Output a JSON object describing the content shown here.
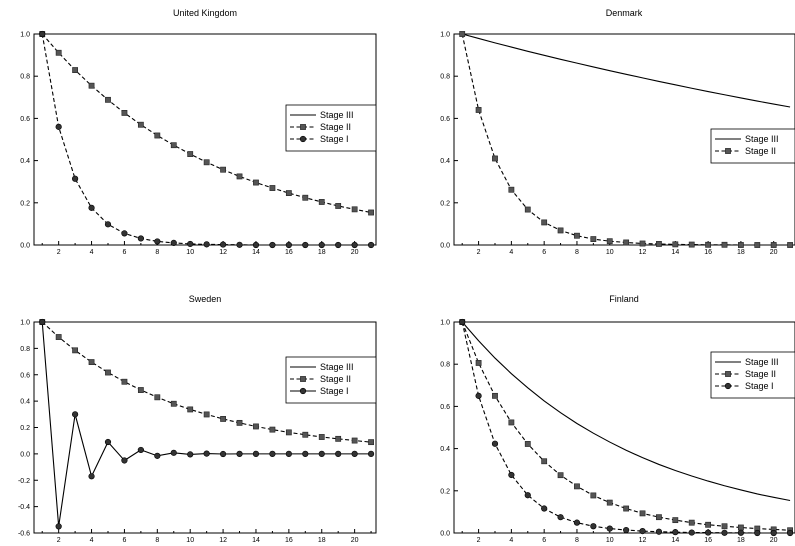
{
  "chart_data": [
    {
      "type": "line",
      "title": "United Kingdom",
      "x": [
        1,
        2,
        3,
        4,
        5,
        6,
        7,
        8,
        9,
        10,
        11,
        12,
        13,
        14,
        15,
        16,
        17,
        18,
        19,
        20,
        21
      ],
      "ylim": [
        0,
        1.0
      ],
      "yticks": [
        "0.0",
        "0.2",
        "0.4",
        "0.6",
        "0.8",
        "1.0"
      ],
      "xticks": [
        "2",
        "4",
        "6",
        "8",
        "10",
        "12",
        "14",
        "16",
        "18",
        "20"
      ],
      "legend_position": "right-middle",
      "series": [
        {
          "name": "Stage III",
          "style": "solid",
          "marker": "none",
          "values": [
            1,
            1,
            1,
            1,
            1,
            1,
            1,
            1,
            1,
            1,
            1,
            1,
            1,
            1,
            1,
            1,
            1,
            1,
            1,
            1,
            1
          ]
        },
        {
          "name": "Stage II",
          "style": "dashed",
          "marker": "square",
          "values": [
            1.0,
            0.911,
            0.829,
            0.755,
            0.688,
            0.626,
            0.57,
            0.519,
            0.473,
            0.431,
            0.392,
            0.357,
            0.325,
            0.296,
            0.27,
            0.246,
            0.224,
            0.204,
            0.185,
            0.169,
            0.154
          ]
        },
        {
          "name": "Stage I",
          "style": "dashed",
          "marker": "circle",
          "values": [
            1.0,
            0.56,
            0.314,
            0.176,
            0.098,
            0.055,
            0.031,
            0.017,
            0.01,
            0.005,
            0.003,
            0.002,
            0.001,
            0,
            0,
            0,
            0,
            0,
            0,
            0,
            0
          ]
        }
      ]
    },
    {
      "type": "line",
      "title": "Denmark",
      "x": [
        1,
        2,
        3,
        4,
        5,
        6,
        7,
        8,
        9,
        10,
        11,
        12,
        13,
        14,
        15,
        16,
        17,
        18,
        19,
        20,
        21
      ],
      "ylim": [
        0,
        1.0
      ],
      "yticks": [
        "0.0",
        "0.2",
        "0.4",
        "0.6",
        "0.8",
        "1.0"
      ],
      "xticks": [
        "2",
        "4",
        "6",
        "8",
        "10",
        "12",
        "14",
        "16",
        "18",
        "20"
      ],
      "legend_position": "right-middle",
      "series": [
        {
          "name": "Stage III",
          "style": "solid",
          "marker": "none",
          "values": [
            1.0,
            0.979,
            0.958,
            0.938,
            0.918,
            0.899,
            0.88,
            0.862,
            0.844,
            0.826,
            0.809,
            0.792,
            0.775,
            0.759,
            0.743,
            0.727,
            0.712,
            0.697,
            0.682,
            0.668,
            0.654
          ]
        },
        {
          "name": "Stage II",
          "style": "dashed",
          "marker": "square",
          "values": [
            1.0,
            0.64,
            0.41,
            0.262,
            0.168,
            0.107,
            0.069,
            0.044,
            0.028,
            0.018,
            0.012,
            0.007,
            0.005,
            0.003,
            0.002,
            0.001,
            0.001,
            0,
            0,
            0,
            0
          ]
        }
      ]
    },
    {
      "type": "line",
      "title": "Sweden",
      "x": [
        1,
        2,
        3,
        4,
        5,
        6,
        7,
        8,
        9,
        10,
        11,
        12,
        13,
        14,
        15,
        16,
        17,
        18,
        19,
        20,
        21
      ],
      "ylim": [
        -0.6,
        1.0
      ],
      "yticks": [
        "-0.6",
        "-0.4",
        "-0.2",
        "0.0",
        "0.2",
        "0.4",
        "0.6",
        "0.8",
        "1.0"
      ],
      "xticks": [
        "2",
        "4",
        "6",
        "8",
        "10",
        "12",
        "14",
        "16",
        "18",
        "20"
      ],
      "legend_position": "right-middle",
      "series": [
        {
          "name": "Stage III",
          "style": "solid",
          "marker": "none",
          "values": [
            1,
            1,
            1,
            1,
            1,
            1,
            1,
            1,
            1,
            1,
            1,
            1,
            1,
            1,
            1,
            1,
            1,
            1,
            1,
            1,
            1
          ]
        },
        {
          "name": "Stage II",
          "style": "dashed",
          "marker": "square",
          "values": [
            1.0,
            0.886,
            0.785,
            0.696,
            0.617,
            0.547,
            0.484,
            0.429,
            0.38,
            0.337,
            0.299,
            0.265,
            0.235,
            0.208,
            0.184,
            0.163,
            0.145,
            0.128,
            0.114,
            0.101,
            0.089
          ]
        },
        {
          "name": "Stage I",
          "style": "solid",
          "marker": "circle",
          "values": [
            1.0,
            -0.55,
            0.3,
            -0.17,
            0.09,
            -0.05,
            0.03,
            -0.015,
            0.008,
            -0.004,
            0.002,
            -0.001,
            0,
            0,
            0,
            0,
            0,
            0,
            0,
            0,
            0
          ]
        }
      ]
    },
    {
      "type": "line",
      "title": "Finland",
      "x": [
        1,
        2,
        3,
        4,
        5,
        6,
        7,
        8,
        9,
        10,
        11,
        12,
        13,
        14,
        15,
        16,
        17,
        18,
        19,
        20,
        21
      ],
      "ylim": [
        0,
        1.0
      ],
      "yticks": [
        "0.0",
        "0.2",
        "0.4",
        "0.6",
        "0.8",
        "1.0"
      ],
      "xticks": [
        "2",
        "4",
        "6",
        "8",
        "10",
        "12",
        "14",
        "16",
        "18",
        "20"
      ],
      "legend_position": "right-top",
      "series": [
        {
          "name": "Stage III",
          "style": "solid",
          "marker": "none",
          "values": [
            1.0,
            0.911,
            0.829,
            0.755,
            0.688,
            0.626,
            0.57,
            0.519,
            0.473,
            0.431,
            0.392,
            0.357,
            0.325,
            0.296,
            0.27,
            0.246,
            0.224,
            0.204,
            0.185,
            0.169,
            0.154
          ]
        },
        {
          "name": "Stage II",
          "style": "dashed",
          "marker": "square",
          "values": [
            1.0,
            0.806,
            0.65,
            0.524,
            0.422,
            0.34,
            0.274,
            0.221,
            0.178,
            0.144,
            0.116,
            0.093,
            0.075,
            0.061,
            0.049,
            0.039,
            0.032,
            0.026,
            0.021,
            0.017,
            0.013
          ]
        },
        {
          "name": "Stage I",
          "style": "dashed",
          "marker": "circle",
          "values": [
            1.0,
            0.65,
            0.423,
            0.275,
            0.179,
            0.116,
            0.075,
            0.049,
            0.032,
            0.021,
            0.014,
            0.009,
            0.006,
            0.004,
            0.002,
            0.002,
            0.001,
            0.001,
            0,
            0,
            0
          ]
        }
      ]
    }
  ]
}
